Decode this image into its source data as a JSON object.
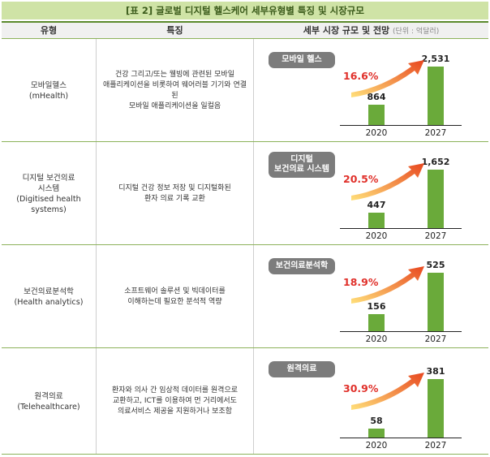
{
  "title": "[표 2] 글로벌 디지털 헬스케어 세부유형별 특징 및 시장규모",
  "header": {
    "col_type": "유형",
    "col_feature": "특징",
    "col_market": "세부 시장 규모 및 전망",
    "unit": "(단위 : 억달러)"
  },
  "colors": {
    "bar": "#6aaa3a",
    "growth": "#e0302a",
    "tag": "#7c7c7c",
    "title_bg": "#cfe3a6"
  },
  "rows": [
    {
      "type": "모바일헬스\n(mHealth)",
      "feature": "건강 그리고/또는 웰빙에 관련된 모바일\n애플리케이션을 비롯하여 웨어러블 기기와 연결된\n모바일 애플리케이션을 일컬음",
      "tag": "모바일 헬스",
      "growth": "16.6%",
      "years": [
        "2020",
        "2027"
      ],
      "values": [
        864,
        2531
      ],
      "value_labels": [
        "864",
        "2,531"
      ]
    },
    {
      "type": "디지털 보건의료\n시스템\n(Digitised health systems)",
      "feature": "디지털 건강 정보 저장 및 디지털화된\n환자 의료 기록 교환",
      "tag": "디지털\n보건의료 시스템",
      "growth": "20.5%",
      "years": [
        "2020",
        "2027"
      ],
      "values": [
        447,
        1652
      ],
      "value_labels": [
        "447",
        "1,652"
      ]
    },
    {
      "type": "보건의료분석학\n(Health analytics)",
      "feature": "소프트웨어 솔루션 및 빅데이터를\n이해하는데 필요한 분석적 역량",
      "tag": "보건의료분석학",
      "growth": "18.9%",
      "years": [
        "2020",
        "2027"
      ],
      "values": [
        156,
        525
      ],
      "value_labels": [
        "156",
        "525"
      ]
    },
    {
      "type": "원격의료\n(Telehealthcare)",
      "feature": "환자와 의사 간 임상적 데이터를 원격으로\n교환하고, ICT를 이용하여 먼 거리에서도\n의료서비스 제공을 지원하거나 보조함",
      "tag": "원격의료",
      "growth": "30.9%",
      "years": [
        "2020",
        "2027"
      ],
      "values": [
        58,
        381
      ],
      "value_labels": [
        "58",
        "381"
      ]
    }
  ]
}
